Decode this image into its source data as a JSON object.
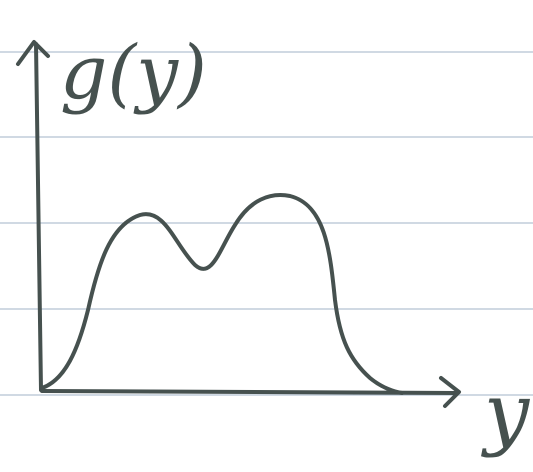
{
  "axes": {
    "y_label": "g(y)",
    "x_label": "y"
  }
}
